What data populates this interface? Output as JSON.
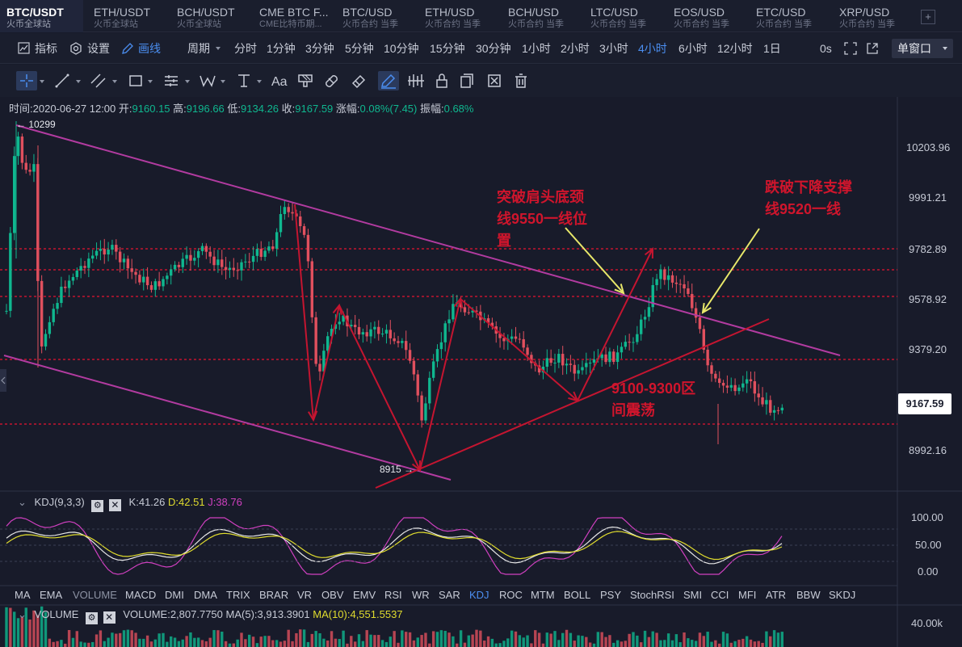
{
  "tabs": [
    {
      "name": "BTC/USDT",
      "sub": "火币全球站",
      "active": true
    },
    {
      "name": "ETH/USDT",
      "sub": "火币全球站"
    },
    {
      "name": "BCH/USDT",
      "sub": "火币全球站"
    },
    {
      "name": "CME BTC F...",
      "sub": "CME比特币期..."
    },
    {
      "name": "BTC/USD",
      "sub": "火币合约 当季"
    },
    {
      "name": "ETH/USD",
      "sub": "火币合约 当季"
    },
    {
      "name": "BCH/USD",
      "sub": "火币合约 当季"
    },
    {
      "name": "LTC/USD",
      "sub": "火币合约 当季"
    },
    {
      "name": "EOS/USD",
      "sub": "火币合约 当季"
    },
    {
      "name": "ETC/USD",
      "sub": "火币合约 当季"
    },
    {
      "name": "XRP/USD",
      "sub": "火币合约 当季"
    }
  ],
  "add_tab": "+",
  "toolbar": {
    "indicators": "指标",
    "settings": "设置",
    "draw": "画线",
    "period": "周期",
    "window_mode": "单窗口",
    "seconds": "0s"
  },
  "periods": [
    "分时",
    "1分钟",
    "3分钟",
    "5分钟",
    "10分钟",
    "15分钟",
    "30分钟",
    "1小时",
    "2小时",
    "3小时",
    "4小时",
    "6小时",
    "12小时",
    "1日"
  ],
  "active_period": "4小时",
  "drawing_tools": [
    "crosshair-icon",
    "trend-line-icon",
    "channel-icon",
    "rectangle-icon",
    "fib-icon",
    "pattern-w-icon",
    "measure-icon",
    "text-icon",
    "brush-icon",
    "magnet-icon",
    "eraser-icon",
    "draw-mode-icon",
    "candles-icon",
    "lock-icon",
    "copy-icon",
    "hide-icon",
    "delete-icon"
  ],
  "ohlc": {
    "time_label": "时间:",
    "time": "2020-06-27 12:00",
    "open_label": "开:",
    "open": "9160.15",
    "high_label": "高:",
    "high": "9196.66",
    "low_label": "低:",
    "low": "9134.26",
    "close_label": "收:",
    "close": "9167.59",
    "change_label": "涨幅:",
    "change": "0.08%(7.45)",
    "amp_label": "振幅:",
    "amp": "0.68%"
  },
  "price_axis": [
    "10203.96",
    "9991.21",
    "9782.89",
    "9578.92",
    "9379.20",
    "8992.16"
  ],
  "current_price": "9167.59",
  "high_marker": "← 10299",
  "low_marker": "8915 →",
  "annotations": {
    "breakout": "突破肩头底颈\n线9550一线位\n置",
    "breakdown": "跌破下降支撑\n线9520一线",
    "range": "9100-9300区\n间震荡"
  },
  "kdj": {
    "name": "KDJ(9,3,3)",
    "k_label": "K:",
    "k": "41.26",
    "d_label": "D:",
    "d": "42.51",
    "j_label": "J:",
    "j": "38.76",
    "axis": [
      "100.00",
      "50.00",
      "0.00"
    ],
    "k_color": "#e8e8e8",
    "d_color": "#e0dc2e",
    "j_color": "#d040c0"
  },
  "indicator_tabs": [
    "MA",
    "EMA",
    "VOLUME",
    "MACD",
    "DMI",
    "DMA",
    "TRIX",
    "BRAR",
    "VR",
    "OBV",
    "EMV",
    "RSI",
    "WR",
    "SAR",
    "KDJ",
    "ROC",
    "MTM",
    "BOLL",
    "PSY",
    "StochRSI",
    "SMI",
    "CCI",
    "MFI",
    "ATR",
    "BBW",
    "SKDJ"
  ],
  "active_indicator": "KDJ",
  "volume": {
    "name": "VOLUME",
    "value_label": "VOLUME:",
    "value": "2,807.7750",
    "ma5_label": "MA(5):",
    "ma5": "3,913.3901",
    "ma10_label": "MA(10):",
    "ma10": "4,551.5537",
    "axis": "40.00k"
  },
  "colors": {
    "up": "#0fb78f",
    "down": "#e0505e",
    "channel": "#b23ba0",
    "arrows": "#c41530",
    "support": "#c41530",
    "callout": "#e8e86a",
    "accent": "#4b8ef0"
  }
}
